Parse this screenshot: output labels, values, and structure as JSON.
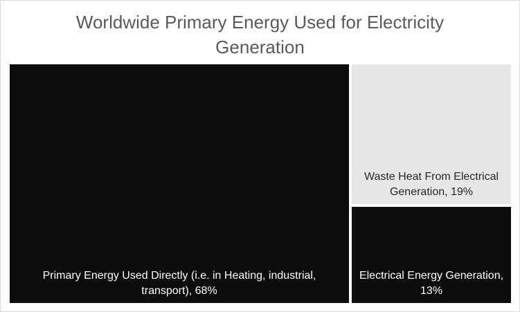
{
  "chart_data": {
    "type": "treemap",
    "title": "Worldwide Primary Energy Used for Electricity Generation",
    "title_lines": [
      "Worldwide Primary Energy Used for Electricity",
      "Generation"
    ],
    "unit": "%",
    "items": [
      {
        "name": "Primary Energy Used Directly (i.e. in Heating, industrial, transport)",
        "value": 68,
        "label_lines": [
          "Primary Energy Used Directly (i.e. in Heating, industrial,",
          "transport), 68%"
        ],
        "color": "#0d0d0d",
        "text_color": "#ffffff"
      },
      {
        "name": "Waste Heat From Electrical Generation",
        "value": 19,
        "label_lines": [
          "Waste Heat From Electrical",
          "Generation, 19%"
        ],
        "color": "#e7e7e7",
        "text_color": "#262626"
      },
      {
        "name": "Electrical Energy Generation",
        "value": 13,
        "label_lines": [
          "Electrical Energy Generation,",
          "13%"
        ],
        "color": "#0d0d0d",
        "text_color": "#ffffff"
      }
    ]
  }
}
